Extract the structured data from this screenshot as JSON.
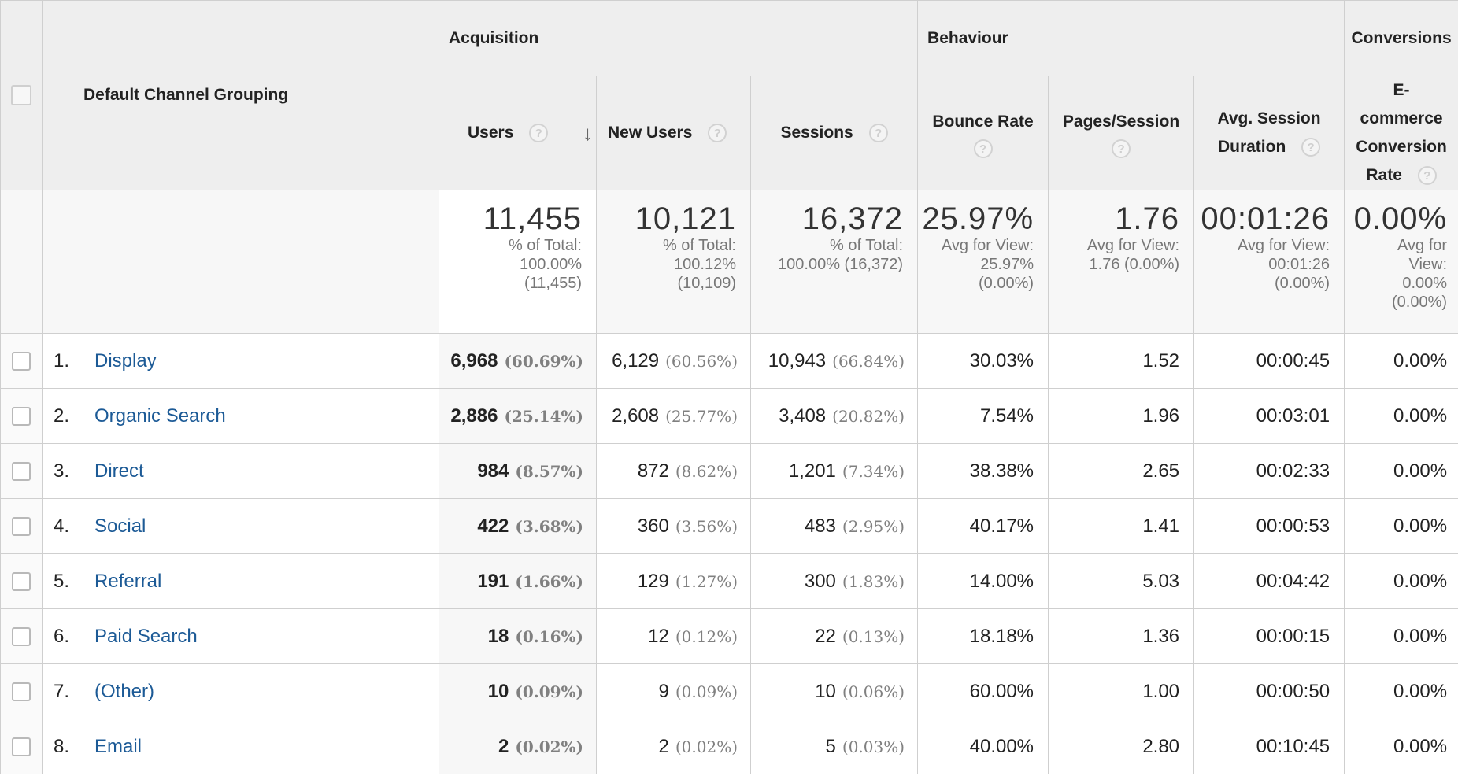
{
  "header": {
    "dimension": "Default Channel Grouping",
    "groups": {
      "acquisition": "Acquisition",
      "behaviour": "Behaviour",
      "conversions": "Conversions"
    },
    "columns": {
      "users": "Users",
      "new_users": "New Users",
      "sessions": "Sessions",
      "bounce_rate": "Bounce Rate",
      "pages_session": "Pages/Session",
      "avg_duration_line1": "Avg. Session",
      "avg_duration_line2": "Duration",
      "ecommerce_line1": "E-",
      "ecommerce_line2": "commerce",
      "ecommerce_line3": "Conversion",
      "ecommerce_line4": "Rate"
    },
    "help_glyph": "?",
    "sort_glyph": "↓"
  },
  "totals": {
    "users": {
      "value": "11,455",
      "l1": "% of Total:",
      "l2": "100.00%",
      "l3": "(11,455)"
    },
    "new_users": {
      "value": "10,121",
      "l1": "% of Total:",
      "l2": "100.12%",
      "l3": "(10,109)"
    },
    "sessions": {
      "value": "16,372",
      "l1": "% of Total:",
      "l2": "100.00% (16,372)"
    },
    "bounce_rate": {
      "value": "25.97%",
      "l1": "Avg for View:",
      "l2": "25.97%",
      "l3": "(0.00%)"
    },
    "pages_session": {
      "value": "1.76",
      "l1": "Avg for View:",
      "l2": "1.76 (0.00%)"
    },
    "avg_duration": {
      "value": "00:01:26",
      "l1": "Avg for View:",
      "l2": "00:01:26",
      "l3": "(0.00%)"
    },
    "ecommerce": {
      "value": "0.00%",
      "l1": "Avg for",
      "l2": "View:",
      "l3": "0.00%",
      "l4": "(0.00%)"
    }
  },
  "rows": [
    {
      "rank": "1.",
      "channel": "Display",
      "users": "6,968",
      "users_pct": "(60.69%)",
      "new_users": "6,129",
      "new_users_pct": "(60.56%)",
      "sessions": "10,943",
      "sessions_pct": "(66.84%)",
      "bounce_rate": "30.03%",
      "pages_session": "1.52",
      "avg_duration": "00:00:45",
      "ecommerce": "0.00%"
    },
    {
      "rank": "2.",
      "channel": "Organic Search",
      "users": "2,886",
      "users_pct": "(25.14%)",
      "new_users": "2,608",
      "new_users_pct": "(25.77%)",
      "sessions": "3,408",
      "sessions_pct": "(20.82%)",
      "bounce_rate": "7.54%",
      "pages_session": "1.96",
      "avg_duration": "00:03:01",
      "ecommerce": "0.00%"
    },
    {
      "rank": "3.",
      "channel": "Direct",
      "users": "984",
      "users_pct": "(8.57%)",
      "new_users": "872",
      "new_users_pct": "(8.62%)",
      "sessions": "1,201",
      "sessions_pct": "(7.34%)",
      "bounce_rate": "38.38%",
      "pages_session": "2.65",
      "avg_duration": "00:02:33",
      "ecommerce": "0.00%"
    },
    {
      "rank": "4.",
      "channel": "Social",
      "users": "422",
      "users_pct": "(3.68%)",
      "new_users": "360",
      "new_users_pct": "(3.56%)",
      "sessions": "483",
      "sessions_pct": "(2.95%)",
      "bounce_rate": "40.17%",
      "pages_session": "1.41",
      "avg_duration": "00:00:53",
      "ecommerce": "0.00%"
    },
    {
      "rank": "5.",
      "channel": "Referral",
      "users": "191",
      "users_pct": "(1.66%)",
      "new_users": "129",
      "new_users_pct": "(1.27%)",
      "sessions": "300",
      "sessions_pct": "(1.83%)",
      "bounce_rate": "14.00%",
      "pages_session": "5.03",
      "avg_duration": "00:04:42",
      "ecommerce": "0.00%"
    },
    {
      "rank": "6.",
      "channel": "Paid Search",
      "users": "18",
      "users_pct": "(0.16%)",
      "new_users": "12",
      "new_users_pct": "(0.12%)",
      "sessions": "22",
      "sessions_pct": "(0.13%)",
      "bounce_rate": "18.18%",
      "pages_session": "1.36",
      "avg_duration": "00:00:15",
      "ecommerce": "0.00%"
    },
    {
      "rank": "7.",
      "channel": "(Other)",
      "users": "10",
      "users_pct": "(0.09%)",
      "new_users": "9",
      "new_users_pct": "(0.09%)",
      "sessions": "10",
      "sessions_pct": "(0.06%)",
      "bounce_rate": "60.00%",
      "pages_session": "1.00",
      "avg_duration": "00:00:50",
      "ecommerce": "0.00%"
    },
    {
      "rank": "8.",
      "channel": "Email",
      "users": "2",
      "users_pct": "(0.02%)",
      "new_users": "2",
      "new_users_pct": "(0.02%)",
      "sessions": "5",
      "sessions_pct": "(0.03%)",
      "bounce_rate": "40.00%",
      "pages_session": "2.80",
      "avg_duration": "00:10:45",
      "ecommerce": "0.00%"
    }
  ]
}
